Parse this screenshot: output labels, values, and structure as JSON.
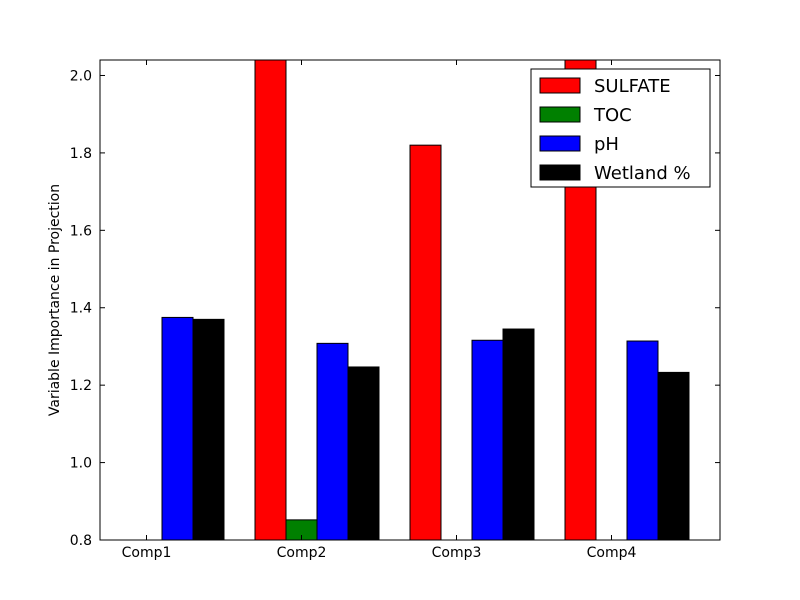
{
  "chart_data": {
    "type": "bar",
    "title": "",
    "xlabel": "",
    "ylabel": "Variable Importance in Projection",
    "categories": [
      "Comp1",
      "Comp2",
      "Comp3",
      "Comp4"
    ],
    "ylim": [
      0.8,
      2.04
    ],
    "yticks": [
      "0.8",
      "1.0",
      "1.2",
      "1.4",
      "1.6",
      "1.8",
      "2.0"
    ],
    "grid": false,
    "legend_position": "top-right",
    "series": [
      {
        "name": "SULFATE",
        "color": "#ff0000",
        "values": [
          null,
          2.04,
          1.82,
          2.04
        ]
      },
      {
        "name": "TOC",
        "color": "#008000",
        "values": [
          null,
          0.852,
          null,
          null
        ]
      },
      {
        "name": "pH",
        "color": "#0000ff",
        "values": [
          1.375,
          1.308,
          1.316,
          1.314
        ]
      },
      {
        "name": "Wetland %",
        "color": "#000000",
        "values": [
          1.37,
          1.247,
          1.345,
          1.233
        ]
      }
    ]
  }
}
